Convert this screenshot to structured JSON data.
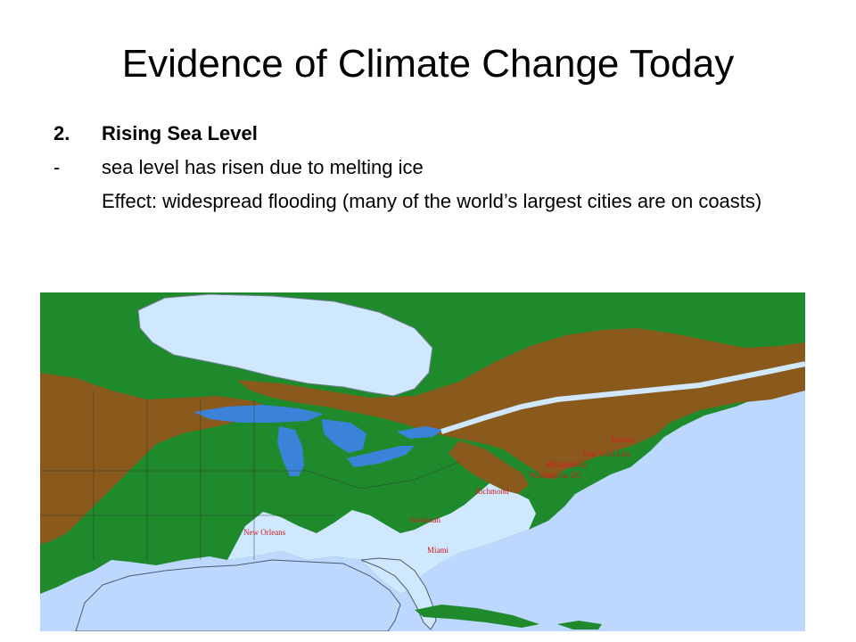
{
  "slide": {
    "title": "Evidence of Climate Change Today",
    "item_number": "2.",
    "item_heading": "Rising Sea Level",
    "bullet_marker": "-",
    "bullet_text": "sea level has risen due to melting ice",
    "effect_text": "Effect: widespread flooding (many of the world’s largest cities are on coasts)"
  },
  "map": {
    "colors": {
      "ocean": "#bcd8ff",
      "lowland_green": "#1f8a2c",
      "upland_brown": "#8a5a1c",
      "flooded_land": "#cfe7ff",
      "lakes": "#3b83d9",
      "city_labels": "#d21d1d"
    },
    "cities": [
      {
        "name": "Boston"
      },
      {
        "name": "New York City"
      },
      {
        "name": "Philadelphia"
      },
      {
        "name": "Washington, DC"
      },
      {
        "name": "Richmond"
      },
      {
        "name": "Savannah"
      },
      {
        "name": "New Orleans"
      },
      {
        "name": "Miami"
      }
    ]
  }
}
